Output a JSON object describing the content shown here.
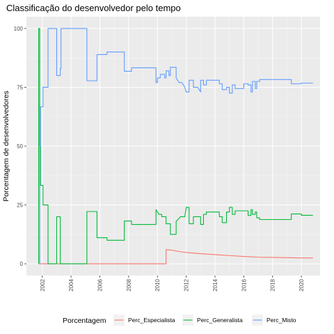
{
  "chart_data": {
    "type": "line",
    "title": "Classificação do desenvolvedor pelo tempo",
    "xlabel": "",
    "ylabel": "Porcentagem de desenvolvedores",
    "xlim": [
      2000.9,
      2021.3
    ],
    "ylim": [
      -5,
      105
    ],
    "x_ticks": [
      2002,
      2004,
      2006,
      2008,
      2010,
      2012,
      2014,
      2016,
      2018,
      2020
    ],
    "x_tick_labels": [
      "2002",
      "2004",
      "2006",
      "2008",
      "2010",
      "2012",
      "2014",
      "2016",
      "2018",
      "2020"
    ],
    "y_ticks": [
      0,
      25,
      50,
      75,
      100
    ],
    "y_tick_labels": [
      "0",
      "25",
      "50",
      "75",
      "100"
    ],
    "grid": true,
    "legend_title": "Porcentagem",
    "legend_position": "bottom",
    "series": [
      {
        "name": "Perc_Especialista",
        "color": "#F8766D",
        "points": [
          [
            2001.8,
            0
          ],
          [
            2010.6,
            0
          ],
          [
            2010.6,
            6
          ],
          [
            2011.0,
            5.8
          ],
          [
            2011.5,
            5.2
          ],
          [
            2012.0,
            4.8
          ],
          [
            2013.0,
            4.3
          ],
          [
            2014.0,
            3.9
          ],
          [
            2015.0,
            3.5
          ],
          [
            2016.0,
            3.1
          ],
          [
            2017.0,
            2.8
          ],
          [
            2018.0,
            2.7
          ],
          [
            2019.0,
            2.6
          ],
          [
            2020.0,
            2.5
          ],
          [
            2020.8,
            2.5
          ]
        ]
      },
      {
        "name": "Perc_Generalista",
        "color": "#00BA38",
        "points": [
          [
            2001.75,
            0
          ],
          [
            2001.75,
            100
          ],
          [
            2001.82,
            100
          ],
          [
            2001.82,
            50
          ],
          [
            2001.88,
            50
          ],
          [
            2001.88,
            33.3
          ],
          [
            2002.05,
            33.3
          ],
          [
            2002.05,
            25
          ],
          [
            2002.4,
            25
          ],
          [
            2002.4,
            0
          ],
          [
            2003.0,
            0
          ],
          [
            2003.0,
            20
          ],
          [
            2003.25,
            20
          ],
          [
            2003.25,
            0
          ],
          [
            2005.1,
            0
          ],
          [
            2005.1,
            22.2
          ],
          [
            2005.8,
            22.2
          ],
          [
            2005.8,
            11.1
          ],
          [
            2006.5,
            11.1
          ],
          [
            2006.5,
            10
          ],
          [
            2007.7,
            10
          ],
          [
            2007.7,
            18.2
          ],
          [
            2008.2,
            18.2
          ],
          [
            2008.2,
            16.7
          ],
          [
            2009.9,
            16.7
          ],
          [
            2009.9,
            23
          ],
          [
            2010.1,
            21
          ],
          [
            2010.3,
            21
          ],
          [
            2010.3,
            20
          ],
          [
            2010.6,
            20
          ],
          [
            2010.6,
            17
          ],
          [
            2010.9,
            17
          ],
          [
            2010.9,
            12.5
          ],
          [
            2011.3,
            12.5
          ],
          [
            2011.3,
            18
          ],
          [
            2011.6,
            20
          ],
          [
            2011.9,
            20
          ],
          [
            2012.0,
            24
          ],
          [
            2012.2,
            24
          ],
          [
            2012.2,
            17
          ],
          [
            2012.5,
            17
          ],
          [
            2012.5,
            20
          ],
          [
            2013.0,
            20
          ],
          [
            2013.0,
            16.7
          ],
          [
            2013.2,
            16.7
          ],
          [
            2013.2,
            21
          ],
          [
            2013.4,
            21
          ],
          [
            2013.4,
            22
          ],
          [
            2014.3,
            22
          ],
          [
            2014.3,
            20
          ],
          [
            2014.5,
            20
          ],
          [
            2014.5,
            17.5
          ],
          [
            2014.8,
            17.5
          ],
          [
            2014.8,
            22
          ],
          [
            2015.0,
            22
          ],
          [
            2015.0,
            24
          ],
          [
            2015.2,
            24
          ],
          [
            2015.2,
            21
          ],
          [
            2015.4,
            21
          ],
          [
            2015.4,
            22.5
          ],
          [
            2016.3,
            22.5
          ],
          [
            2016.3,
            20.5
          ],
          [
            2016.5,
            20.5
          ],
          [
            2016.5,
            23
          ],
          [
            2016.6,
            23
          ],
          [
            2016.6,
            21
          ],
          [
            2016.8,
            21
          ],
          [
            2016.8,
            22
          ],
          [
            2016.9,
            22
          ],
          [
            2016.9,
            19.5
          ],
          [
            2017.1,
            19.5
          ],
          [
            2017.1,
            18.8
          ],
          [
            2019.3,
            18.8
          ],
          [
            2019.3,
            21.2
          ],
          [
            2020.0,
            21.2
          ],
          [
            2020.0,
            20.6
          ],
          [
            2020.8,
            20.6
          ]
        ]
      },
      {
        "name": "Perc_Misto",
        "color": "#619CFF",
        "points": [
          [
            2001.75,
            0
          ],
          [
            2001.82,
            0
          ],
          [
            2001.82,
            50
          ],
          [
            2001.88,
            50
          ],
          [
            2001.88,
            66.7
          ],
          [
            2002.05,
            66.7
          ],
          [
            2002.05,
            75
          ],
          [
            2002.4,
            75
          ],
          [
            2002.4,
            100
          ],
          [
            2003.0,
            100
          ],
          [
            2003.0,
            80
          ],
          [
            2003.25,
            80
          ],
          [
            2003.25,
            83
          ],
          [
            2003.3,
            83
          ],
          [
            2003.3,
            100
          ],
          [
            2005.1,
            100
          ],
          [
            2005.1,
            77.8
          ],
          [
            2005.8,
            77.8
          ],
          [
            2005.8,
            88.9
          ],
          [
            2006.5,
            88.9
          ],
          [
            2006.5,
            90
          ],
          [
            2007.7,
            90
          ],
          [
            2007.7,
            81.8
          ],
          [
            2008.2,
            81.8
          ],
          [
            2008.2,
            83.3
          ],
          [
            2009.9,
            83.3
          ],
          [
            2009.9,
            77
          ],
          [
            2010.0,
            77
          ],
          [
            2010.0,
            79
          ],
          [
            2010.2,
            79
          ],
          [
            2010.2,
            80.5
          ],
          [
            2010.5,
            80.5
          ],
          [
            2010.5,
            79
          ],
          [
            2010.6,
            79
          ],
          [
            2010.6,
            82
          ],
          [
            2010.8,
            82
          ],
          [
            2010.8,
            80
          ],
          [
            2010.9,
            80
          ],
          [
            2010.9,
            83.5
          ],
          [
            2011.3,
            83.5
          ],
          [
            2011.3,
            79
          ],
          [
            2011.5,
            77
          ],
          [
            2011.7,
            77
          ],
          [
            2011.9,
            75
          ],
          [
            2012.0,
            73
          ],
          [
            2012.2,
            73
          ],
          [
            2012.2,
            78
          ],
          [
            2012.5,
            78
          ],
          [
            2012.5,
            75
          ],
          [
            2012.8,
            75
          ],
          [
            2013.0,
            73
          ],
          [
            2013.0,
            78
          ],
          [
            2013.2,
            78
          ],
          [
            2013.2,
            76
          ],
          [
            2013.4,
            76
          ],
          [
            2013.4,
            78
          ],
          [
            2014.3,
            78
          ],
          [
            2014.3,
            76.5
          ],
          [
            2014.5,
            76.5
          ],
          [
            2014.5,
            74
          ],
          [
            2014.8,
            74
          ],
          [
            2014.8,
            75
          ],
          [
            2015.0,
            75
          ],
          [
            2015.0,
            72.5
          ],
          [
            2015.2,
            72.5
          ],
          [
            2015.2,
            76
          ],
          [
            2015.4,
            76
          ],
          [
            2015.4,
            74.5
          ],
          [
            2016.0,
            74.5
          ],
          [
            2016.0,
            76.5
          ],
          [
            2016.3,
            76.5
          ],
          [
            2016.3,
            76
          ],
          [
            2016.5,
            76
          ],
          [
            2016.5,
            73
          ],
          [
            2016.6,
            73
          ],
          [
            2016.6,
            77.5
          ],
          [
            2016.8,
            77.5
          ],
          [
            2016.8,
            74.5
          ],
          [
            2016.9,
            74.5
          ],
          [
            2016.9,
            77.5
          ],
          [
            2017.1,
            77.5
          ],
          [
            2017.1,
            78.3
          ],
          [
            2019.3,
            78.3
          ],
          [
            2019.3,
            76.5
          ],
          [
            2020.0,
            76.5
          ],
          [
            2020.0,
            76.8
          ],
          [
            2020.8,
            76.8
          ]
        ]
      }
    ]
  }
}
